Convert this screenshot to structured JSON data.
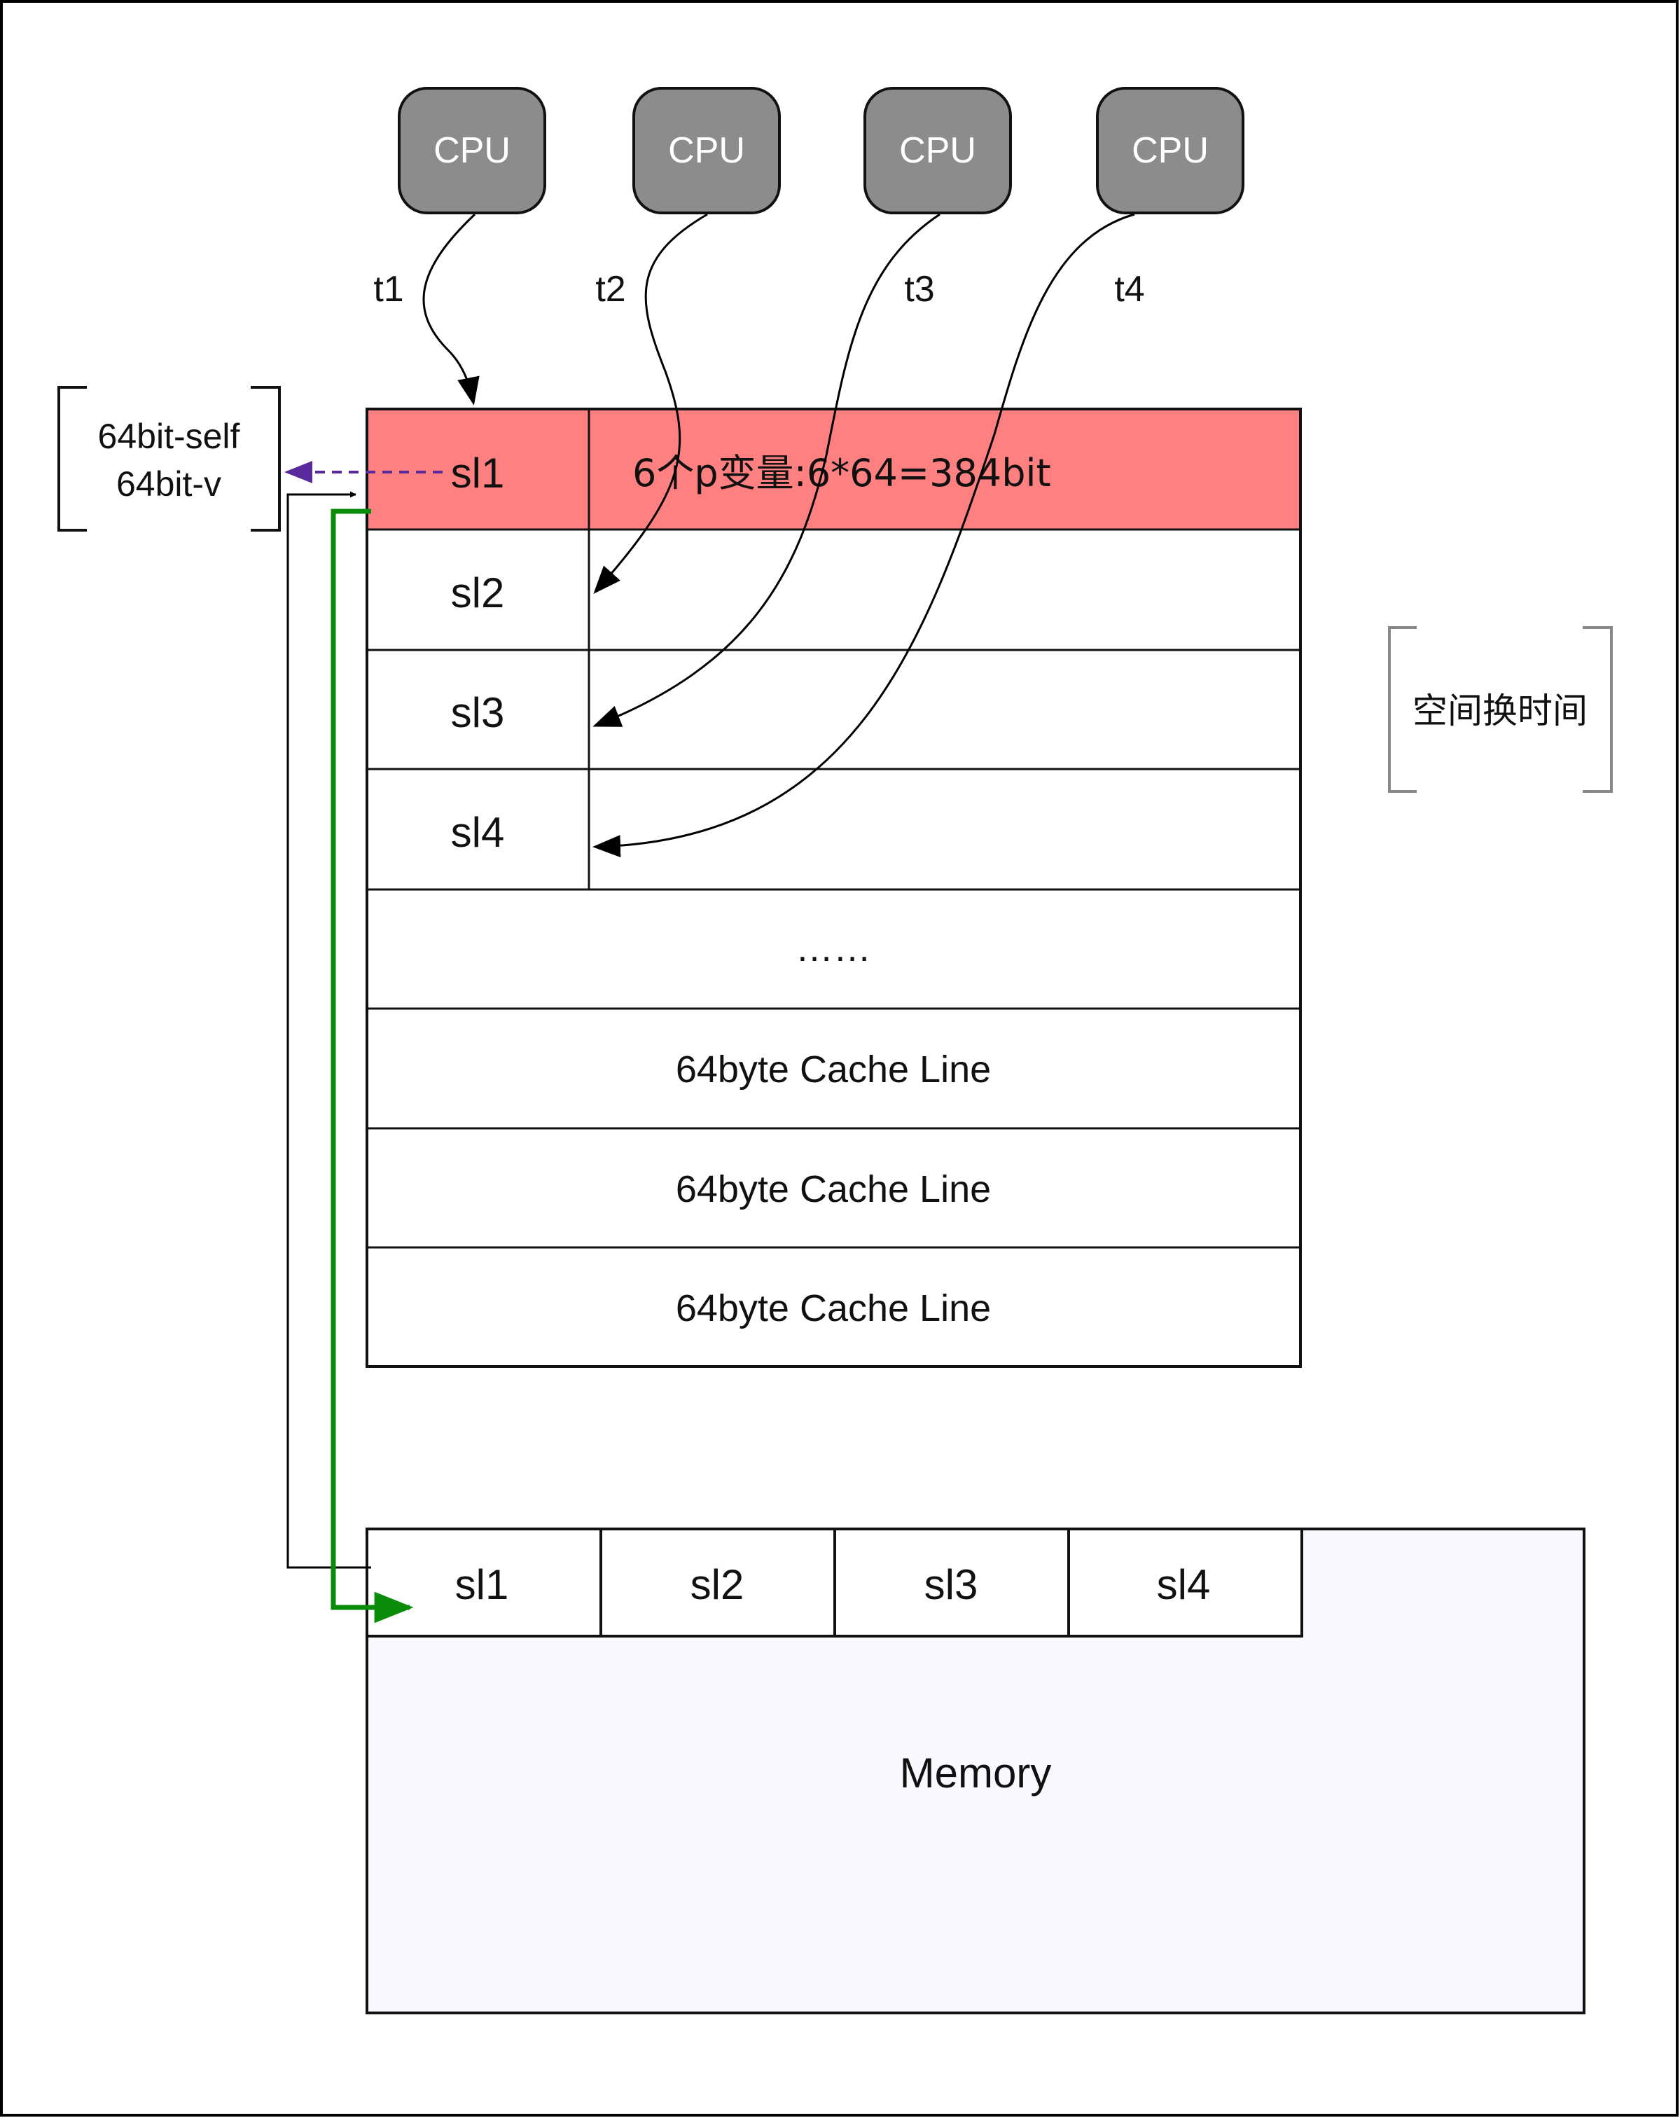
{
  "cpus": [
    {
      "label": "CPU",
      "thread": "t1"
    },
    {
      "label": "CPU",
      "thread": "t2"
    },
    {
      "label": "CPU",
      "thread": "t3"
    },
    {
      "label": "CPU",
      "thread": "t4"
    }
  ],
  "cache": {
    "slot_labels": [
      "sl1",
      "sl2",
      "sl3",
      "sl4"
    ],
    "header_text": "6个p变量:6*64=384bit",
    "ellipsis": "……",
    "cache_lines": [
      "64byte Cache Line",
      "64byte Cache Line",
      "64byte Cache Line"
    ]
  },
  "side_note": {
    "line1": "64bit-self",
    "line2": "64bit-v"
  },
  "tradeoff_note": "空间换时间",
  "memory": {
    "label": "Memory",
    "slot_labels": [
      "sl1",
      "sl2",
      "sl3",
      "sl4"
    ]
  },
  "colors": {
    "cpu_fill": "#8c8c8c",
    "highlight_row": "#ff8080",
    "memory_fill": "#f8f8fe",
    "purple_arrow": "#5a2a9c",
    "green_arrow": "#0a8c0a"
  }
}
